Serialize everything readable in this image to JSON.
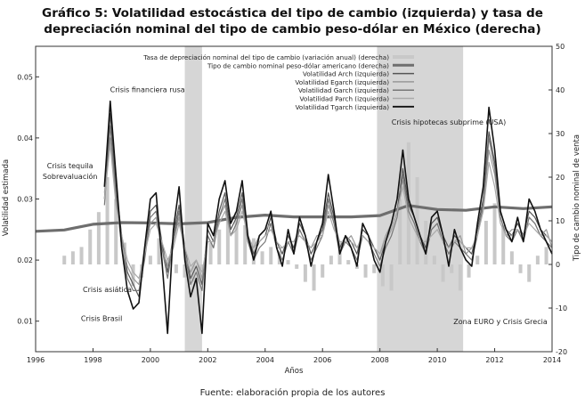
{
  "header": {
    "title_line1": "Gráfico 5: Volatilidad estocástica del tipo de cambio (izquierda) y tasa de",
    "title_line2": "depreciación nominal del tipo de cambio peso-dólar en México (derecha)"
  },
  "footer": {
    "source": "Fuente: elaboración propia de los autores"
  },
  "chart_data": {
    "type": "line",
    "xlabel": "Años",
    "ylabel_left": "Volatilidad estimada",
    "ylabel_right": "Tipo de cambio nominal de venta",
    "xlim": [
      1996,
      2014
    ],
    "ylim_left": [
      0.005,
      0.055
    ],
    "ylim_right": [
      -20,
      50
    ],
    "x_ticks": [
      1996,
      1998,
      2000,
      2002,
      2004,
      2006,
      2008,
      2010,
      2012,
      2014
    ],
    "y_left_ticks": [
      0.01,
      0.02,
      0.03,
      0.04,
      0.05
    ],
    "y_right_ticks": [
      -20,
      -10,
      0,
      10,
      20,
      30,
      40,
      50
    ],
    "legend_position": "top-right",
    "colors": {
      "arch": "#555555",
      "egarch": "#999999",
      "garch": "#777777",
      "parch": "#aaaaaa",
      "tgarch": "#111111",
      "tipo_cambio": "#6e6e6e",
      "depreciacion": "#c8c8c8",
      "shade": "#d6d6d6"
    },
    "shaded_periods": [
      [
        2001.2,
        2001.8
      ],
      [
        2007.9,
        2010.9
      ]
    ],
    "annotations": [
      {
        "text": "Crisis financiera rusa",
        "x": 1999.9,
        "y": 0.0475
      },
      {
        "text": "Crisis tequila",
        "x": 1997.2,
        "y": 0.035
      },
      {
        "text": "Sobrevaluación",
        "x": 1997.2,
        "y": 0.0333
      },
      {
        "text": "Crisis asiática",
        "x": 1998.5,
        "y": 0.0148
      },
      {
        "text": "Crisis Brasil",
        "x": 1998.3,
        "y": 0.01
      },
      {
        "text": "Crisis hipotecas subprime (USA)",
        "x": 2010.4,
        "y": 0.0422
      },
      {
        "text": "Zona EURO y Crisis Grecia",
        "x": 2012.2,
        "y": 0.0095
      }
    ],
    "series": [
      {
        "name": "Tasa de depreciación nominal del tipo de cambio (variación anual) (derecha)",
        "axis": "right",
        "style": "bars",
        "x": [
          1997.0,
          1997.3,
          1997.6,
          1997.9,
          1998.2,
          1998.5,
          1998.8,
          1999.1,
          1999.4,
          1999.7,
          2000.0,
          2000.3,
          2000.6,
          2000.9,
          2001.2,
          2001.5,
          2001.8,
          2002.1,
          2002.4,
          2002.7,
          2003.0,
          2003.3,
          2003.6,
          2003.9,
          2004.2,
          2004.5,
          2004.8,
          2005.1,
          2005.4,
          2005.7,
          2006.0,
          2006.3,
          2006.6,
          2006.9,
          2007.2,
          2007.5,
          2007.8,
          2008.1,
          2008.4,
          2008.7,
          2009.0,
          2009.3,
          2009.6,
          2009.9,
          2010.2,
          2010.5,
          2010.8,
          2011.1,
          2011.4,
          2011.7,
          2012.0,
          2012.3,
          2012.6,
          2012.9,
          2013.2,
          2013.5,
          2013.8
        ],
        "values": [
          2,
          3,
          4,
          8,
          12,
          20,
          15,
          5,
          -5,
          -3,
          2,
          6,
          1,
          -2,
          -3,
          -4,
          -1,
          5,
          8,
          10,
          12,
          9,
          6,
          3,
          4,
          3,
          1,
          -1,
          -4,
          -6,
          -3,
          2,
          5,
          1,
          -1,
          -3,
          -2,
          -5,
          -6,
          15,
          28,
          20,
          10,
          2,
          -4,
          -2,
          -6,
          -3,
          2,
          10,
          14,
          9,
          3,
          -2,
          -4,
          2,
          4
        ]
      },
      {
        "name": "Tipo de cambio nominal peso-dólar americano (derecha)",
        "axis": "right",
        "style": "thick",
        "x": [
          1996,
          1997,
          1998,
          1999,
          2000,
          2001,
          2002,
          2003,
          2004,
          2005,
          2006,
          2007,
          2008,
          2009,
          2010,
          2011,
          2012,
          2013,
          2014
        ],
        "values": [
          7.6,
          7.9,
          9.2,
          9.6,
          9.5,
          9.3,
          9.6,
          10.8,
          11.3,
          10.9,
          10.9,
          10.9,
          11.2,
          13.5,
          12.6,
          12.4,
          13.2,
          12.8,
          13.2
        ]
      },
      {
        "name": "Volatilidad Arch (izquierda)",
        "axis": "left",
        "style": "line",
        "x": [
          1998.4,
          1998.6,
          1998.8,
          1999.0,
          1999.2,
          1999.4,
          1999.6,
          1999.8,
          2000.0,
          2000.2,
          2000.4,
          2000.6,
          2000.8,
          2001.0,
          2001.2,
          2001.4,
          2001.6,
          2001.8,
          2002.0,
          2002.2,
          2002.4,
          2002.6,
          2002.8,
          2003.0,
          2003.2,
          2003.4,
          2003.6,
          2003.8,
          2004.0,
          2004.2,
          2004.4,
          2004.6,
          2004.8,
          2005.0,
          2005.2,
          2005.4,
          2005.6,
          2005.8,
          2006.0,
          2006.2,
          2006.4,
          2006.6,
          2006.8,
          2007.0,
          2007.2,
          2007.4,
          2007.6,
          2007.8,
          2008.0,
          2008.2,
          2008.4,
          2008.6,
          2008.8,
          2009.0,
          2009.2,
          2009.4,
          2009.6,
          2009.8,
          2010.0,
          2010.2,
          2010.4,
          2010.6,
          2010.8,
          2011.0,
          2011.2,
          2011.4,
          2011.6,
          2011.8,
          2012.0,
          2012.2,
          2012.4,
          2012.6,
          2012.8,
          2013.0,
          2013.2,
          2013.4,
          2013.6,
          2013.8,
          2014.0
        ],
        "values": [
          0.03,
          0.044,
          0.032,
          0.024,
          0.018,
          0.016,
          0.014,
          0.021,
          0.028,
          0.029,
          0.023,
          0.018,
          0.024,
          0.029,
          0.022,
          0.017,
          0.019,
          0.016,
          0.025,
          0.023,
          0.028,
          0.031,
          0.025,
          0.027,
          0.031,
          0.024,
          0.021,
          0.023,
          0.024,
          0.027,
          0.023,
          0.021,
          0.024,
          0.022,
          0.026,
          0.024,
          0.021,
          0.023,
          0.025,
          0.031,
          0.027,
          0.022,
          0.024,
          0.023,
          0.021,
          0.025,
          0.024,
          0.022,
          0.02,
          0.023,
          0.025,
          0.028,
          0.035,
          0.029,
          0.027,
          0.024,
          0.022,
          0.026,
          0.027,
          0.024,
          0.022,
          0.024,
          0.023,
          0.022,
          0.021,
          0.025,
          0.03,
          0.041,
          0.036,
          0.028,
          0.025,
          0.024,
          0.026,
          0.024,
          0.028,
          0.027,
          0.025,
          0.024,
          0.023
        ]
      },
      {
        "name": "Volatilidad Egarch (izquierda)",
        "axis": "left",
        "style": "line",
        "x": [
          1998.4,
          1998.6,
          1998.8,
          1999.0,
          1999.2,
          1999.4,
          1999.6,
          1999.8,
          2000.0,
          2000.2,
          2000.4,
          2000.6,
          2000.8,
          2001.0,
          2001.2,
          2001.4,
          2001.6,
          2001.8,
          2002.0,
          2002.2,
          2002.4,
          2002.6,
          2002.8,
          2003.0,
          2003.2,
          2003.4,
          2003.6,
          2003.8,
          2004.0,
          2004.2,
          2004.4,
          2004.6,
          2004.8,
          2005.0,
          2005.2,
          2005.4,
          2005.6,
          2005.8,
          2006.0,
          2006.2,
          2006.4,
          2006.6,
          2006.8,
          2007.0,
          2007.2,
          2007.4,
          2007.6,
          2007.8,
          2008.0,
          2008.2,
          2008.4,
          2008.6,
          2008.8,
          2009.0,
          2009.2,
          2009.4,
          2009.6,
          2009.8,
          2010.0,
          2010.2,
          2010.4,
          2010.6,
          2010.8,
          2011.0,
          2011.2,
          2011.4,
          2011.6,
          2011.8,
          2012.0,
          2012.2,
          2012.4,
          2012.6,
          2012.8,
          2013.0,
          2013.2,
          2013.4,
          2013.6,
          2013.8,
          2014.0
        ],
        "values": [
          0.031,
          0.04,
          0.03,
          0.023,
          0.019,
          0.017,
          0.016,
          0.022,
          0.026,
          0.027,
          0.022,
          0.019,
          0.023,
          0.027,
          0.021,
          0.018,
          0.02,
          0.017,
          0.024,
          0.022,
          0.027,
          0.029,
          0.024,
          0.026,
          0.029,
          0.023,
          0.022,
          0.024,
          0.025,
          0.026,
          0.022,
          0.022,
          0.023,
          0.023,
          0.025,
          0.023,
          0.022,
          0.024,
          0.024,
          0.029,
          0.026,
          0.023,
          0.023,
          0.024,
          0.022,
          0.024,
          0.023,
          0.022,
          0.021,
          0.024,
          0.026,
          0.03,
          0.033,
          0.028,
          0.026,
          0.023,
          0.023,
          0.025,
          0.026,
          0.023,
          0.021,
          0.023,
          0.024,
          0.021,
          0.022,
          0.024,
          0.029,
          0.038,
          0.034,
          0.027,
          0.024,
          0.025,
          0.025,
          0.023,
          0.027,
          0.026,
          0.024,
          0.025,
          0.022
        ]
      },
      {
        "name": "Volatilidad Garch (izquierda)",
        "axis": "left",
        "style": "line",
        "x": [
          1998.4,
          1998.6,
          1998.8,
          1999.0,
          1999.2,
          1999.4,
          1999.6,
          1999.8,
          2000.0,
          2000.2,
          2000.4,
          2000.6,
          2000.8,
          2001.0,
          2001.2,
          2001.4,
          2001.6,
          2001.8,
          2002.0,
          2002.2,
          2002.4,
          2002.6,
          2002.8,
          2003.0,
          2003.2,
          2003.4,
          2003.6,
          2003.8,
          2004.0,
          2004.2,
          2004.4,
          2004.6,
          2004.8,
          2005.0,
          2005.2,
          2005.4,
          2005.6,
          2005.8,
          2006.0,
          2006.2,
          2006.4,
          2006.6,
          2006.8,
          2007.0,
          2007.2,
          2007.4,
          2007.6,
          2007.8,
          2008.0,
          2008.2,
          2008.4,
          2008.6,
          2008.8,
          2009.0,
          2009.2,
          2009.4,
          2009.6,
          2009.8,
          2010.0,
          2010.2,
          2010.4,
          2010.6,
          2010.8,
          2011.0,
          2011.2,
          2011.4,
          2011.6,
          2011.8,
          2012.0,
          2012.2,
          2012.4,
          2012.6,
          2012.8,
          2013.0,
          2013.2,
          2013.4,
          2013.6,
          2013.8,
          2014.0
        ],
        "values": [
          0.029,
          0.042,
          0.031,
          0.022,
          0.017,
          0.015,
          0.015,
          0.02,
          0.027,
          0.028,
          0.022,
          0.017,
          0.023,
          0.028,
          0.021,
          0.016,
          0.018,
          0.015,
          0.024,
          0.022,
          0.027,
          0.03,
          0.024,
          0.026,
          0.03,
          0.023,
          0.02,
          0.022,
          0.023,
          0.026,
          0.022,
          0.02,
          0.023,
          0.021,
          0.025,
          0.023,
          0.02,
          0.022,
          0.024,
          0.03,
          0.026,
          0.021,
          0.023,
          0.022,
          0.02,
          0.024,
          0.023,
          0.021,
          0.019,
          0.022,
          0.024,
          0.027,
          0.034,
          0.028,
          0.026,
          0.023,
          0.021,
          0.025,
          0.026,
          0.023,
          0.021,
          0.023,
          0.022,
          0.021,
          0.02,
          0.024,
          0.029,
          0.04,
          0.035,
          0.027,
          0.024,
          0.023,
          0.025,
          0.023,
          0.027,
          0.026,
          0.024,
          0.023,
          0.022
        ]
      },
      {
        "name": "Volatilidad Parch (izquierda)",
        "axis": "left",
        "style": "line",
        "x": [
          1998.4,
          1998.6,
          1998.8,
          1999.0,
          1999.2,
          1999.4,
          1999.6,
          1999.8,
          2000.0,
          2000.2,
          2000.4,
          2000.6,
          2000.8,
          2001.0,
          2001.2,
          2001.4,
          2001.6,
          2001.8,
          2002.0,
          2002.2,
          2002.4,
          2002.6,
          2002.8,
          2003.0,
          2003.2,
          2003.4,
          2003.6,
          2003.8,
          2004.0,
          2004.2,
          2004.4,
          2004.6,
          2004.8,
          2005.0,
          2005.2,
          2005.4,
          2005.6,
          2005.8,
          2006.0,
          2006.2,
          2006.4,
          2006.6,
          2006.8,
          2007.0,
          2007.2,
          2007.4,
          2007.6,
          2007.8,
          2008.0,
          2008.2,
          2008.4,
          2008.6,
          2008.8,
          2009.0,
          2009.2,
          2009.4,
          2009.6,
          2009.8,
          2010.0,
          2010.2,
          2010.4,
          2010.6,
          2010.8,
          2011.0,
          2011.2,
          2011.4,
          2011.6,
          2011.8,
          2012.0,
          2012.2,
          2012.4,
          2012.6,
          2012.8,
          2013.0,
          2013.2,
          2013.4,
          2013.6,
          2013.8,
          2014.0
        ],
        "values": [
          0.03,
          0.039,
          0.029,
          0.024,
          0.02,
          0.018,
          0.017,
          0.021,
          0.025,
          0.026,
          0.023,
          0.02,
          0.022,
          0.026,
          0.022,
          0.019,
          0.02,
          0.018,
          0.023,
          0.023,
          0.026,
          0.028,
          0.024,
          0.025,
          0.028,
          0.024,
          0.022,
          0.023,
          0.024,
          0.025,
          0.023,
          0.022,
          0.023,
          0.023,
          0.024,
          0.023,
          0.022,
          0.023,
          0.024,
          0.028,
          0.025,
          0.023,
          0.023,
          0.023,
          0.022,
          0.024,
          0.023,
          0.022,
          0.021,
          0.023,
          0.025,
          0.028,
          0.032,
          0.027,
          0.025,
          0.023,
          0.023,
          0.024,
          0.025,
          0.023,
          0.022,
          0.023,
          0.023,
          0.022,
          0.022,
          0.024,
          0.028,
          0.036,
          0.032,
          0.026,
          0.024,
          0.024,
          0.025,
          0.024,
          0.026,
          0.025,
          0.024,
          0.024,
          0.023
        ]
      },
      {
        "name": "Volatilidad Tgarch (izquierda)",
        "axis": "left",
        "style": "line",
        "x": [
          1998.4,
          1998.6,
          1998.8,
          1999.0,
          1999.2,
          1999.4,
          1999.6,
          1999.8,
          2000.0,
          2000.2,
          2000.4,
          2000.6,
          2000.8,
          2001.0,
          2001.2,
          2001.4,
          2001.6,
          2001.8,
          2002.0,
          2002.2,
          2002.4,
          2002.6,
          2002.8,
          2003.0,
          2003.2,
          2003.4,
          2003.6,
          2003.8,
          2004.0,
          2004.2,
          2004.4,
          2004.6,
          2004.8,
          2005.0,
          2005.2,
          2005.4,
          2005.6,
          2005.8,
          2006.0,
          2006.2,
          2006.4,
          2006.6,
          2006.8,
          2007.0,
          2007.2,
          2007.4,
          2007.6,
          2007.8,
          2008.0,
          2008.2,
          2008.4,
          2008.6,
          2008.8,
          2009.0,
          2009.2,
          2009.4,
          2009.6,
          2009.8,
          2010.0,
          2010.2,
          2010.4,
          2010.6,
          2010.8,
          2011.0,
          2011.2,
          2011.4,
          2011.6,
          2011.8,
          2012.0,
          2012.2,
          2012.4,
          2012.6,
          2012.8,
          2013.0,
          2013.2,
          2013.4,
          2013.6,
          2013.8,
          2014.0
        ],
        "values": [
          0.032,
          0.046,
          0.034,
          0.022,
          0.015,
          0.012,
          0.013,
          0.022,
          0.03,
          0.031,
          0.02,
          0.008,
          0.025,
          0.032,
          0.02,
          0.014,
          0.017,
          0.008,
          0.026,
          0.024,
          0.03,
          0.033,
          0.026,
          0.028,
          0.033,
          0.024,
          0.02,
          0.024,
          0.025,
          0.028,
          0.022,
          0.019,
          0.025,
          0.021,
          0.027,
          0.024,
          0.019,
          0.023,
          0.026,
          0.034,
          0.028,
          0.021,
          0.024,
          0.022,
          0.019,
          0.026,
          0.024,
          0.02,
          0.018,
          0.023,
          0.026,
          0.03,
          0.038,
          0.03,
          0.027,
          0.024,
          0.021,
          0.027,
          0.028,
          0.024,
          0.019,
          0.025,
          0.022,
          0.02,
          0.019,
          0.026,
          0.032,
          0.045,
          0.038,
          0.028,
          0.025,
          0.023,
          0.027,
          0.023,
          0.03,
          0.028,
          0.025,
          0.023,
          0.021
        ]
      }
    ]
  }
}
